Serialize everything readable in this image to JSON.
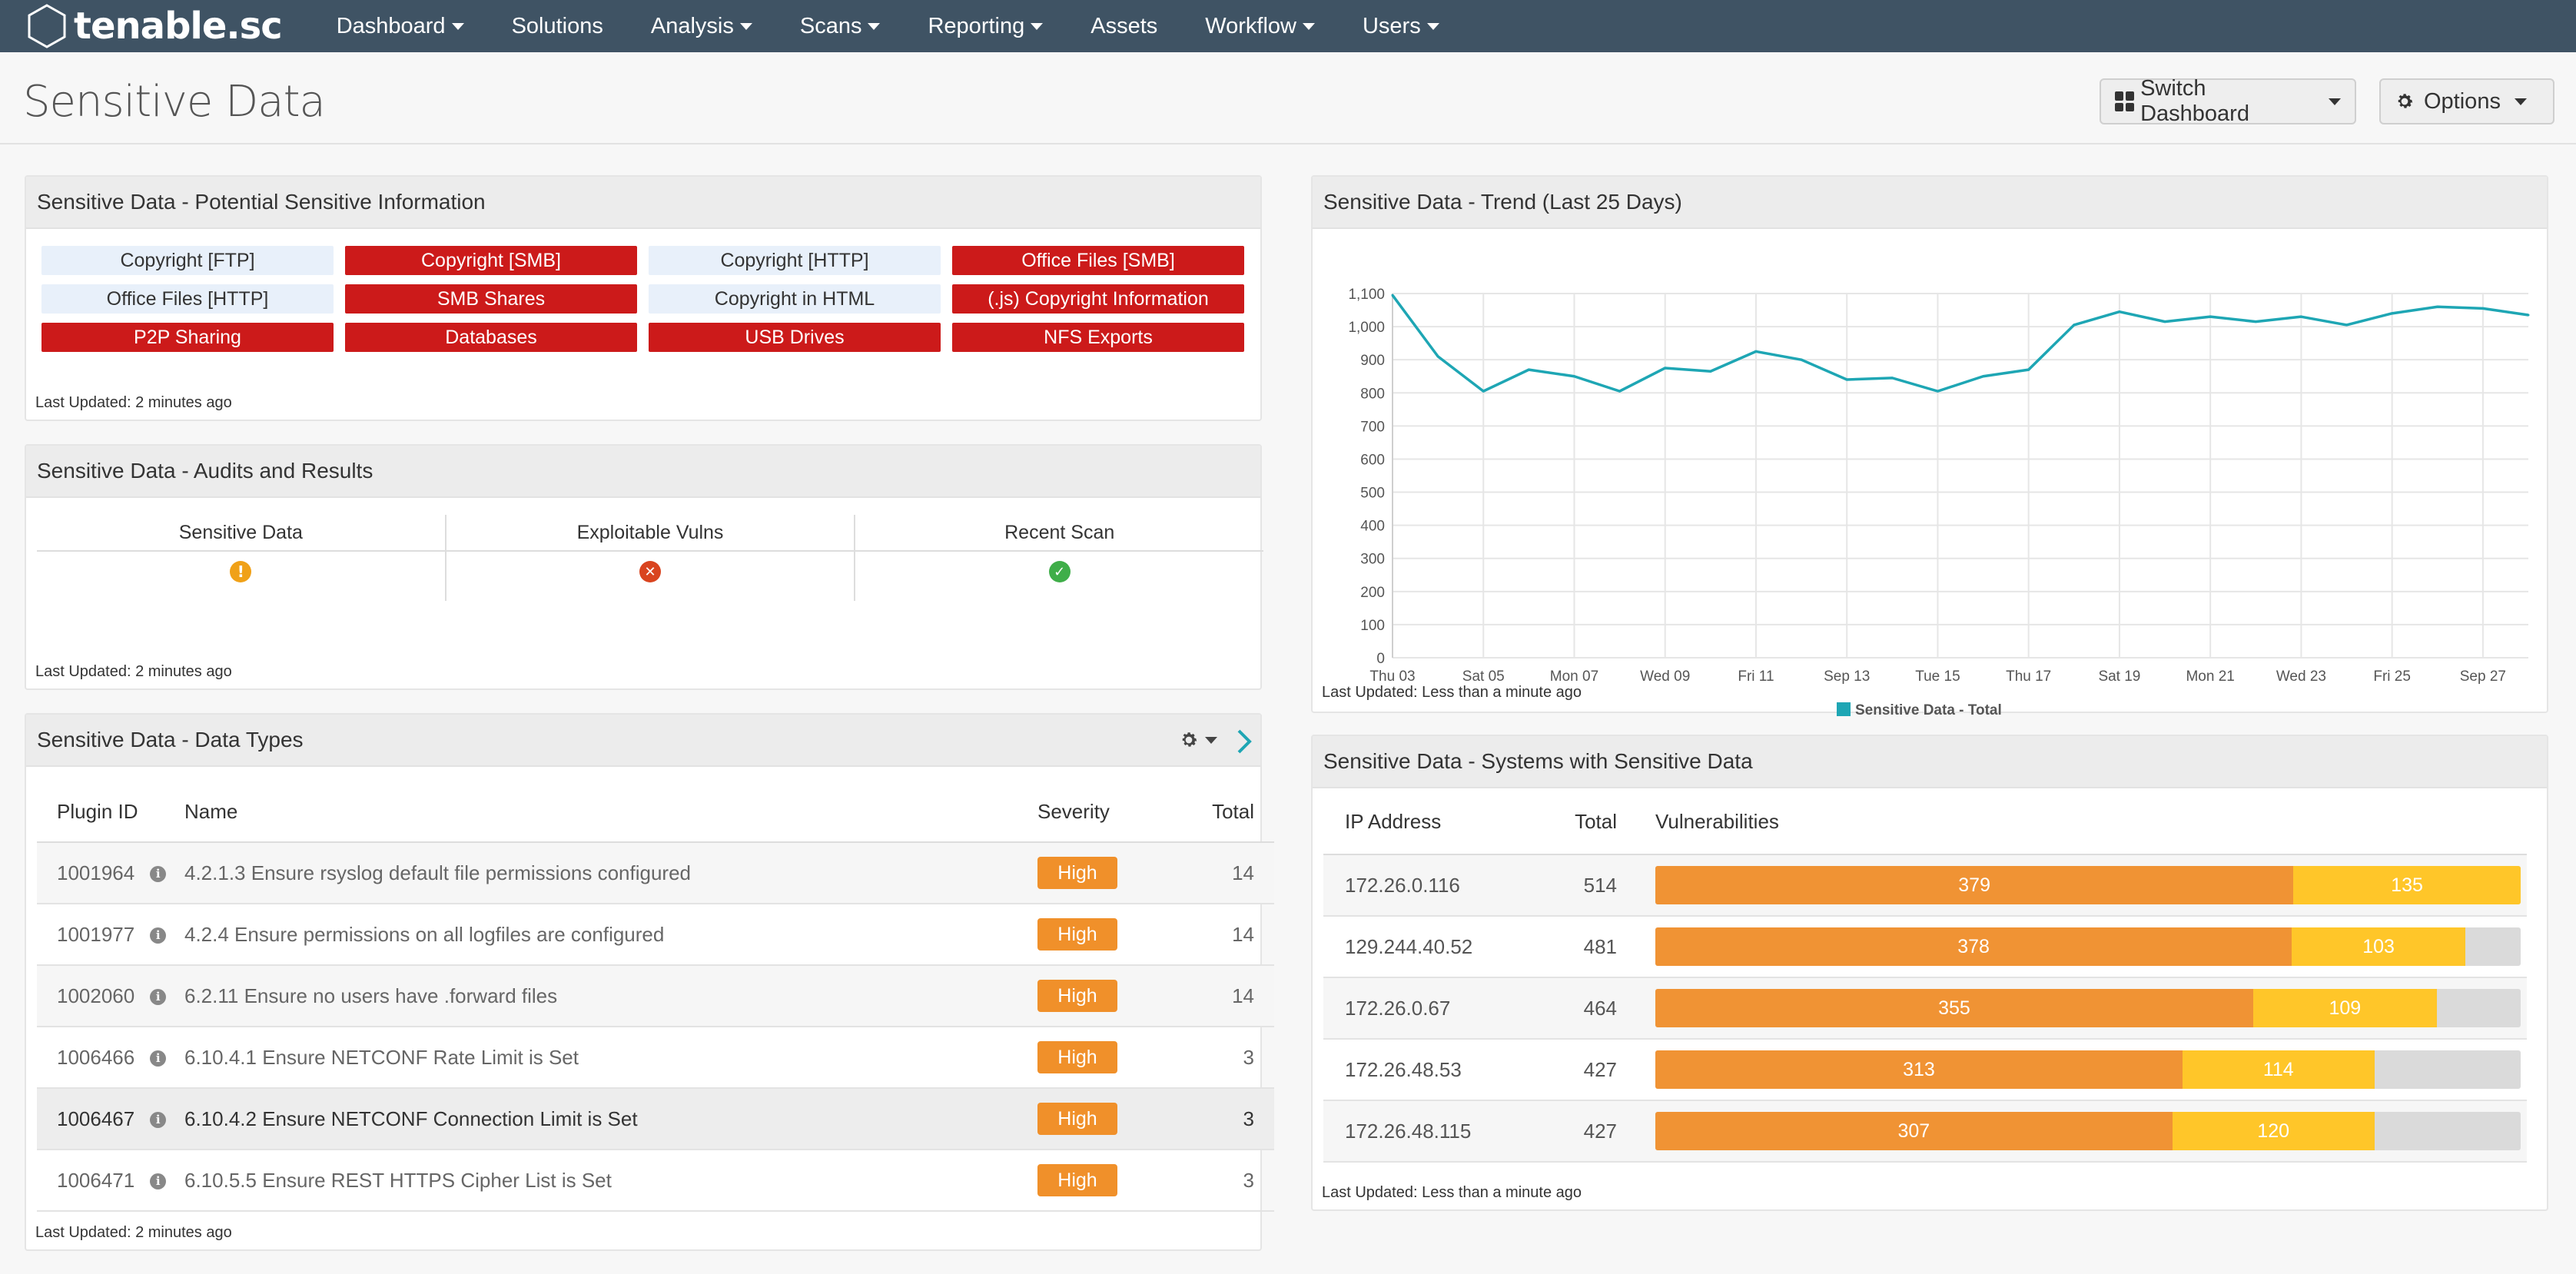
{
  "nav": {
    "logo": "tenable.sc",
    "items": [
      {
        "label": "Dashboard",
        "caret": true
      },
      {
        "label": "Solutions",
        "caret": false
      },
      {
        "label": "Analysis",
        "caret": true
      },
      {
        "label": "Scans",
        "caret": true
      },
      {
        "label": "Reporting",
        "caret": true
      },
      {
        "label": "Assets",
        "caret": false
      },
      {
        "label": "Workflow",
        "caret": true
      },
      {
        "label": "Users",
        "caret": true
      }
    ]
  },
  "page": {
    "title": "Sensitive Data",
    "switch_dashboard": "Switch Dashboard",
    "options": "Options"
  },
  "potential": {
    "title": "Sensitive Data - Potential Sensitive Information",
    "tiles": [
      {
        "label": "Copyright [FTP]",
        "state": "light"
      },
      {
        "label": "Copyright [SMB]",
        "state": "red"
      },
      {
        "label": "Copyright [HTTP]",
        "state": "light"
      },
      {
        "label": "Office Files [SMB]",
        "state": "red"
      },
      {
        "label": "Office Files [HTTP]",
        "state": "light"
      },
      {
        "label": "SMB Shares",
        "state": "red"
      },
      {
        "label": "Copyright in HTML",
        "state": "light"
      },
      {
        "label": "(.js) Copyright Information",
        "state": "red"
      },
      {
        "label": "P2P Sharing",
        "state": "red"
      },
      {
        "label": "Databases",
        "state": "red"
      },
      {
        "label": "USB Drives",
        "state": "red"
      },
      {
        "label": "NFS Exports",
        "state": "red"
      }
    ],
    "updated": "Last Updated: 2 minutes ago"
  },
  "audits": {
    "title": "Sensitive Data - Audits and Results",
    "columns": [
      {
        "label": "Sensitive Data",
        "icon": "warning-icon"
      },
      {
        "label": "Exploitable Vulns",
        "icon": "error-icon"
      },
      {
        "label": "Recent Scan",
        "icon": "check-icon"
      }
    ],
    "updated": "Last Updated: 2 minutes ago"
  },
  "datatypes": {
    "title": "Sensitive Data - Data Types",
    "headers": [
      "Plugin ID",
      "Name",
      "Severity",
      "Total"
    ],
    "rows": [
      {
        "id": "1001964",
        "name": "4.2.1.3 Ensure rsyslog default file permissions configured",
        "severity": "High",
        "total": "14"
      },
      {
        "id": "1001977",
        "name": "4.2.4 Ensure permissions on all logfiles are configured",
        "severity": "High",
        "total": "14"
      },
      {
        "id": "1002060",
        "name": "6.2.11 Ensure no users have .forward files",
        "severity": "High",
        "total": "14"
      },
      {
        "id": "1006466",
        "name": "6.10.4.1 Ensure NETCONF Rate Limit is Set",
        "severity": "High",
        "total": "3"
      },
      {
        "id": "1006467",
        "name": "6.10.4.2 Ensure NETCONF Connection Limit is Set",
        "severity": "High",
        "total": "3"
      },
      {
        "id": "1006471",
        "name": "6.10.5.5 Ensure REST HTTPS Cipher List is Set",
        "severity": "High",
        "total": "3"
      }
    ],
    "updated": "Last Updated: 2 minutes ago"
  },
  "trend": {
    "title": "Sensitive Data - Trend (Last 25 Days)",
    "updated": "Last Updated: Less than a minute ago"
  },
  "chart_data": {
    "type": "line",
    "x": [
      "Thu 03",
      "Fri 04",
      "Sat 05",
      "Sun 06",
      "Mon 07",
      "Tue 08",
      "Wed 09",
      "Thu 10",
      "Fri 11",
      "Sat 12",
      "Sep 13",
      "Mon 14",
      "Tue 15",
      "Wed 16",
      "Thu 17",
      "Fri 18",
      "Sat 19",
      "Sun 20",
      "Mon 21",
      "Tue 22",
      "Wed 23",
      "Thu 24",
      "Fri 25",
      "Sat 26",
      "Sep 27",
      "Mon 28"
    ],
    "tick_labels": [
      "Thu 03",
      "Sat 05",
      "Mon 07",
      "Wed 09",
      "Fri 11",
      "Sep 13",
      "Tue 15",
      "Thu 17",
      "Sat 19",
      "Mon 21",
      "Wed 23",
      "Fri 25",
      "Sep 27"
    ],
    "series": [
      {
        "name": "Sensitive Data - Total",
        "color": "#1ea6b4",
        "values": [
          1095,
          910,
          805,
          870,
          850,
          805,
          875,
          865,
          925,
          900,
          840,
          845,
          805,
          850,
          870,
          1005,
          1045,
          1015,
          1030,
          1015,
          1030,
          1005,
          1040,
          1060,
          1055,
          1035
        ]
      }
    ],
    "ylim": [
      0,
      1100
    ],
    "yticks": [
      0,
      100,
      200,
      300,
      400,
      500,
      600,
      700,
      800,
      900,
      "1,000",
      "1,100"
    ],
    "grid": true,
    "legend": "bottom"
  },
  "systems": {
    "title": "Sensitive Data - Systems with Sensitive Data",
    "headers": [
      "IP Address",
      "Total",
      "Vulnerabilities"
    ],
    "rows": [
      {
        "ip": "172.26.0.116",
        "total": "514",
        "seg1": 379,
        "seg2": 135,
        "fill": 1.0
      },
      {
        "ip": "129.244.40.52",
        "total": "481",
        "seg1": 378,
        "seg2": 103,
        "fill": 0.936
      },
      {
        "ip": "172.26.0.67",
        "total": "464",
        "seg1": 355,
        "seg2": 109,
        "fill": 0.903
      },
      {
        "ip": "172.26.48.53",
        "total": "427",
        "seg1": 313,
        "seg2": 114,
        "fill": 0.831
      },
      {
        "ip": "172.26.48.115",
        "total": "427",
        "seg1": 307,
        "seg2": 120,
        "fill": 0.831
      }
    ],
    "updated": "Last Updated: Less than a minute ago",
    "colors": {
      "high": "#f09334",
      "medium": "#ffc629"
    }
  }
}
